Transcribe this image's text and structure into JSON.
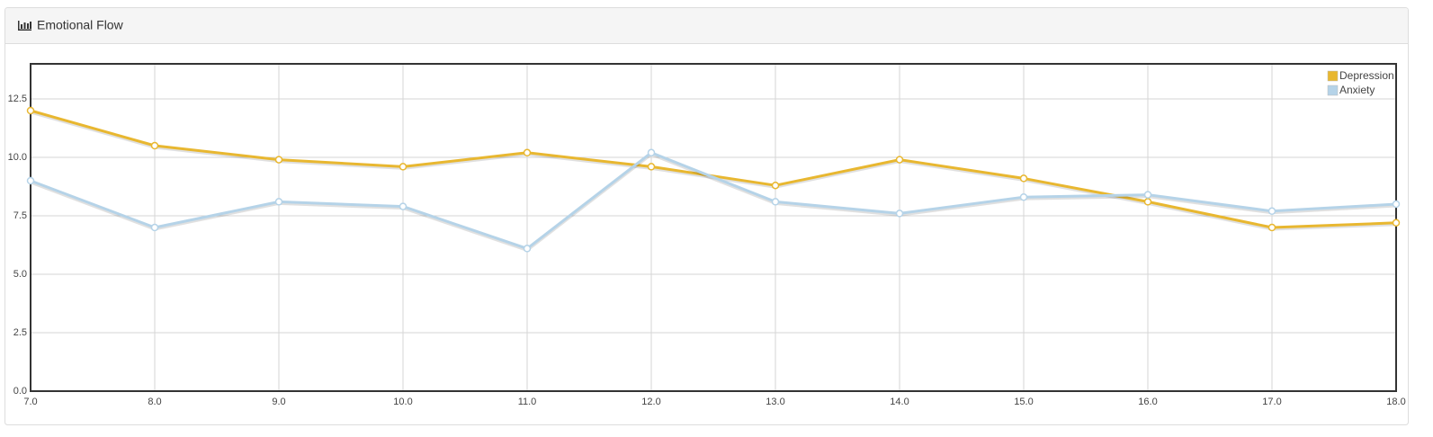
{
  "chart_data": {
    "type": "line",
    "title": "Emotional Flow",
    "x": [
      7,
      8,
      9,
      10,
      11,
      12,
      13,
      14,
      15,
      16,
      17,
      18
    ],
    "series": [
      {
        "name": "Depression",
        "color": "#e8b730",
        "values": [
          12.0,
          10.5,
          9.9,
          9.6,
          10.2,
          9.6,
          8.8,
          9.9,
          9.1,
          8.1,
          7.0,
          7.2
        ]
      },
      {
        "name": "Anxiety",
        "color": "#b5d3e8",
        "values": [
          9.0,
          7.0,
          8.1,
          7.9,
          6.1,
          10.2,
          8.1,
          7.6,
          8.3,
          8.4,
          7.7,
          8.0
        ]
      }
    ],
    "xlim": [
      7,
      18
    ],
    "xticks": [
      {
        "value": 7,
        "label": "7.0"
      },
      {
        "value": 8,
        "label": "8.0"
      },
      {
        "value": 9,
        "label": "9.0"
      },
      {
        "value": 10,
        "label": "10.0"
      },
      {
        "value": 11,
        "label": "11.0"
      },
      {
        "value": 12,
        "label": "12.0"
      },
      {
        "value": 13,
        "label": "13.0"
      },
      {
        "value": 14,
        "label": "14.0"
      },
      {
        "value": 15,
        "label": "15.0"
      },
      {
        "value": 16,
        "label": "16.0"
      },
      {
        "value": 17,
        "label": "17.0"
      },
      {
        "value": 18,
        "label": "18.0"
      }
    ],
    "ylim": [
      0,
      14
    ],
    "yticks": [
      {
        "value": 0,
        "label": "0.0"
      },
      2.5,
      {
        "value": 5,
        "label": "5.0"
      },
      7.5,
      {
        "value": 10,
        "label": "10.0"
      },
      12.5
    ],
    "grid": true,
    "legend": "top-right"
  }
}
